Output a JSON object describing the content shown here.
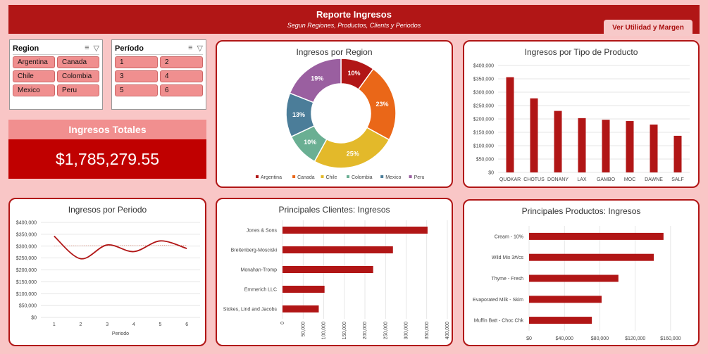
{
  "header": {
    "title": "Reporte Ingresos",
    "subtitle": "Segun Regiones, Productos, Clients y Periodos",
    "button_label": "Ver Utilidad y Margen"
  },
  "slicers": {
    "region": {
      "title": "Region",
      "items": [
        "Argentina",
        "Canada",
        "Chile",
        "Colombia",
        "Mexico",
        "Peru"
      ]
    },
    "periodo": {
      "title": "Período",
      "items": [
        "1",
        "2",
        "3",
        "4",
        "5",
        "6"
      ]
    }
  },
  "kpi": {
    "label": "Ingresos Totales",
    "value": "$1,785,279.55"
  },
  "colors": {
    "accent": "#b11616",
    "header_bg": "#b11616",
    "page_bg": "#f9c6c6",
    "kpi_bg": "#c00000",
    "kpi_head": "#f18f8f"
  },
  "chart_data": [
    {
      "id": "region",
      "type": "pie",
      "title": "Ingresos por Region",
      "labels": [
        "Argentina",
        "Canada",
        "Chile",
        "Colombia",
        "Mexico",
        "Peru"
      ],
      "values": [
        10,
        23,
        25,
        10,
        13,
        19
      ],
      "data_labels": [
        "10%",
        "23%",
        "25%",
        "10%",
        "13%",
        "19%"
      ],
      "colors": [
        "#b11616",
        "#ea6718",
        "#e3b92a",
        "#6aaf93",
        "#4b7d99",
        "#9a5fa0"
      ],
      "legend": "bottom"
    },
    {
      "id": "producto",
      "type": "bar",
      "title": "Ingresos por Tipo de Producto",
      "categories": [
        "QUOKAR",
        "CHOTUS",
        "DONANY",
        "LAX",
        "GAMBO",
        "MOC",
        "DAWNE",
        "SALF"
      ],
      "values": [
        356000,
        277000,
        230000,
        203000,
        197000,
        192000,
        179000,
        137000
      ],
      "ylim": [
        0,
        400000
      ],
      "yticks": [
        "$0",
        "$50,000",
        "$100,000",
        "$150,000",
        "$200,000",
        "$250,000",
        "$300,000",
        "$350,000",
        "$400,000"
      ],
      "color": "#b11616",
      "grid": true
    },
    {
      "id": "periodo",
      "type": "line",
      "title": "Ingresos por Periodo",
      "x": [
        1,
        2,
        3,
        4,
        5,
        6
      ],
      "values": [
        342000,
        247000,
        305000,
        277000,
        322000,
        290000
      ],
      "trend": [
        301000,
        302000,
        302500,
        303000,
        303500,
        304000
      ],
      "xlabel": "Periodo",
      "ylim": [
        0,
        400000
      ],
      "yticks": [
        "$0",
        "$50,000",
        "$100,000",
        "$150,000",
        "$200,000",
        "$250,000",
        "$300,000",
        "$350,000",
        "$400,000"
      ],
      "xticks": [
        "1",
        "2",
        "3",
        "4",
        "5",
        "6"
      ],
      "color": "#b11616",
      "grid": true
    },
    {
      "id": "clientes",
      "type": "bar",
      "orientation": "horizontal",
      "title": "Principales Clientes: Ingresos",
      "categories": [
        "Jones & Sons",
        "Breitenberg-Mosciski",
        "Monahan-Tromp",
        "Emmerich LLC",
        "Stokes, Lind and Jacobs"
      ],
      "values": [
        352000,
        268000,
        220000,
        102000,
        88000
      ],
      "xlim": [
        0,
        400000
      ],
      "xticks": [
        "0",
        "50,000",
        "100,000",
        "150,000",
        "200,000",
        "250,000",
        "300,000",
        "350,000",
        "400,000"
      ],
      "color": "#b11616",
      "grid": true
    },
    {
      "id": "productos",
      "type": "bar",
      "orientation": "horizontal",
      "title": "Principales Productos: Ingresos",
      "categories": [
        "Cream - 10%",
        "Wild Mix 3#/cs",
        "Thyme - Fresh",
        "Evaporated Milk - Skim",
        "Muffin Batt - Choc Chk"
      ],
      "values": [
        152000,
        141000,
        101000,
        82000,
        71000
      ],
      "xlim": [
        0,
        180000
      ],
      "xticks": [
        "$0",
        "$40,000",
        "$80,000",
        "$120,000",
        "$160,000"
      ],
      "xtick_values": [
        0,
        40000,
        80000,
        120000,
        160000
      ],
      "color": "#b11616",
      "grid": true
    }
  ]
}
